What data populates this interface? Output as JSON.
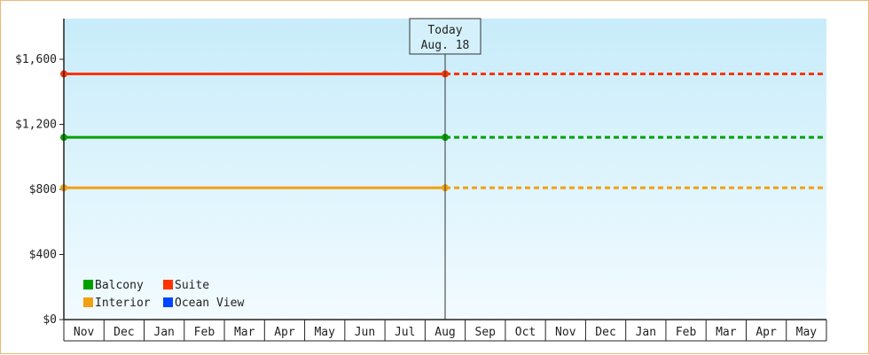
{
  "chart_data": {
    "type": "line",
    "title": "",
    "xlabel": "",
    "ylabel": "",
    "ylim": [
      0,
      1850
    ],
    "y_ticks": [
      0,
      400,
      800,
      1200,
      1600
    ],
    "y_tick_labels": [
      "$0",
      "$400",
      "$800",
      "$1,200",
      "$1,600"
    ],
    "categories": [
      "Nov",
      "Dec",
      "Jan",
      "Feb",
      "Mar",
      "Apr",
      "May",
      "Jun",
      "Jul",
      "Aug",
      "Sep",
      "Oct",
      "Nov",
      "Dec",
      "Jan",
      "Feb",
      "Mar",
      "Apr",
      "May"
    ],
    "today_marker": {
      "line1": "Today",
      "line2": "Aug. 18",
      "category_index": 9.5
    },
    "grid": false,
    "legend_position": "bottom-left",
    "series": [
      {
        "name": "Balcony",
        "color": "#00a000",
        "value": 1120,
        "historical_to": 9.5,
        "projected_to": 19
      },
      {
        "name": "Suite",
        "color": "#ff3300",
        "value": 1510,
        "historical_to": 9.5,
        "projected_to": 19
      },
      {
        "name": "Interior",
        "color": "#f0a010",
        "value": 810,
        "historical_to": 9.5,
        "projected_to": 19
      },
      {
        "name": "Ocean View",
        "color": "#0044ff",
        "value": null
      }
    ],
    "legend_order": [
      "Balcony",
      "Suite",
      "Interior",
      "Ocean View"
    ]
  }
}
